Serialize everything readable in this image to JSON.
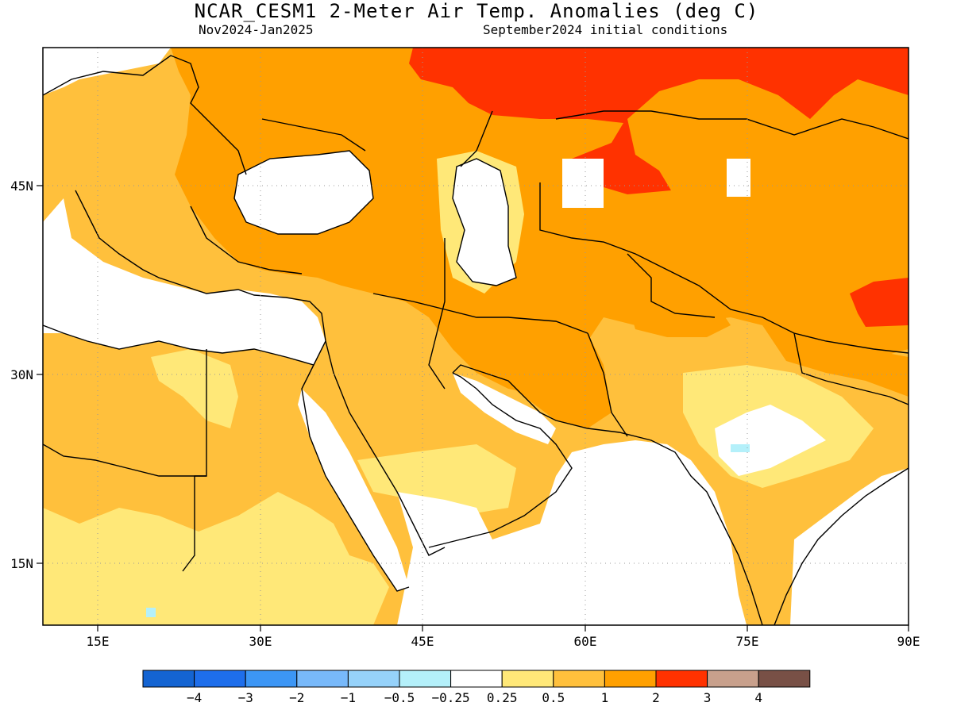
{
  "title": "NCAR_CESM1 2-Meter Air Temp. Anomalies (deg C)",
  "subtitle_left": "Nov2024-Jan2025",
  "subtitle_right": "September2024 initial conditions",
  "axes": {
    "lon_ticks": [
      "15E",
      "30E",
      "45E",
      "60E",
      "75E",
      "90E"
    ],
    "lat_ticks": [
      "45N",
      "30N",
      "15N"
    ],
    "lon_range": [
      10,
      90
    ],
    "lat_range": [
      10,
      56
    ]
  },
  "colorbar": {
    "colors": [
      "#1464d2",
      "#1e6eeb",
      "#3c96f5",
      "#78b9fa",
      "#96d2fa",
      "#b4f0fa",
      "#ffffff",
      "#ffe878",
      "#ffc03c",
      "#ffa000",
      "#ff3200",
      "#c8a08c",
      "#785046"
    ],
    "labels": [
      "−4",
      "−3",
      "−2",
      "−1",
      "−0.5",
      "−0.25",
      "0.25",
      "0.5",
      "1",
      "2",
      "3",
      "4"
    ]
  },
  "chart_data": {
    "type": "heatmap",
    "title": "NCAR_CESM1 2-Meter Air Temp. Anomalies (deg C)",
    "period": "Nov2024-Jan2025",
    "initial_conditions": "September2024 initial conditions",
    "units": "deg C",
    "region": {
      "lon": [
        10,
        90
      ],
      "lat": [
        10,
        56
      ]
    },
    "levels": [
      -4,
      -3,
      -2,
      -1,
      -0.5,
      -0.25,
      0.25,
      0.5,
      1,
      2,
      3,
      4
    ],
    "regions_approx": [
      {
        "area": "northern Russia / Urals",
        "anomaly_range": "2 to 3"
      },
      {
        "area": "Kazakhstan east of Caspian",
        "anomaly_range": "2 to 3"
      },
      {
        "area": "western Tibet",
        "anomaly_range": "2 to 3"
      },
      {
        "area": "Eastern Europe / Turkey / Iran / Central Asia",
        "anomaly_range": "1 to 2"
      },
      {
        "area": "Balkans / North Africa / Arabia",
        "anomaly_range": "0.5 to 1"
      },
      {
        "area": "Sahara / Sahel / southern Arabia / Ganges plain",
        "anomaly_range": "0.25 to 0.5"
      },
      {
        "area": "Black Sea / Mediterranean / Red Sea / Arabian Sea / central India",
        "anomaly_range": "-0.25 to 0.25"
      }
    ]
  }
}
